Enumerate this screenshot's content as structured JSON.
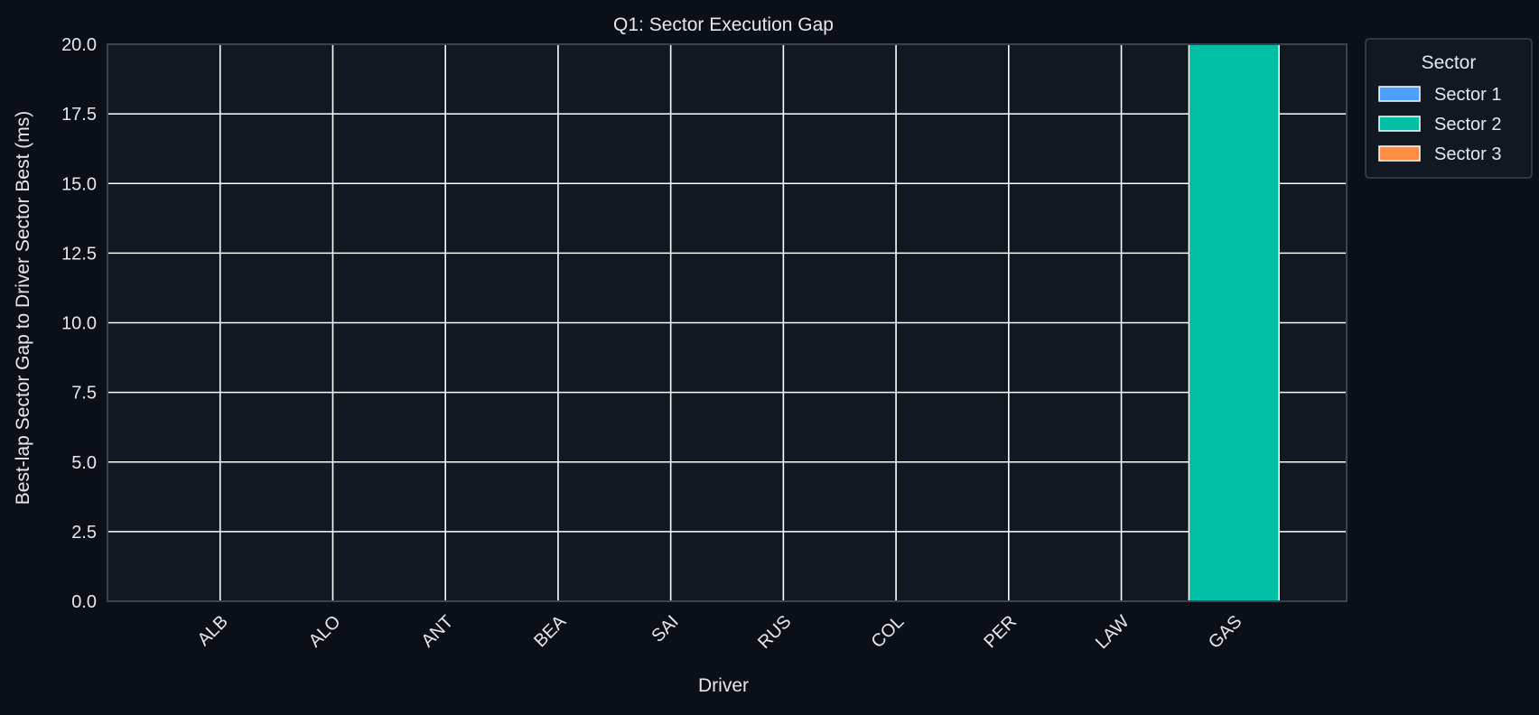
{
  "colors": {
    "page_background": "#0b0f17",
    "plot_background": "#111821",
    "grid": "#ffffff",
    "axes_frame": "#3a4350",
    "text": "#e6e8ec",
    "legend_background": "#111821",
    "legend_border": "#3a4350"
  },
  "chart_data": {
    "type": "bar",
    "title": "Q1: Sector Execution Gap",
    "xlabel": "Driver",
    "ylabel": "Best-lap Sector Gap to Driver Sector Best (ms)",
    "ylim": [
      0,
      20
    ],
    "yticks": [
      "0.0",
      "2.5",
      "5.0",
      "7.5",
      "10.0",
      "12.5",
      "15.0",
      "17.5",
      "20.0"
    ],
    "categories": [
      "ALB",
      "ALO",
      "ANT",
      "BEA",
      "SAI",
      "RUS",
      "COL",
      "PER",
      "LAW",
      "GAS"
    ],
    "grid": true,
    "legend": {
      "title": "Sector",
      "placement": "outside-right-top"
    },
    "series": [
      {
        "name": "Sector 1",
        "color": "#4c9ffe",
        "values": [
          0,
          0,
          0,
          0,
          0,
          0,
          0,
          0,
          0,
          0
        ]
      },
      {
        "name": "Sector 2",
        "color": "#00bfa5",
        "values": [
          0,
          0,
          0,
          0,
          0,
          0,
          0,
          0,
          0,
          20
        ]
      },
      {
        "name": "Sector 3",
        "color": "#ff8c42",
        "values": [
          0,
          0,
          0,
          0,
          0,
          0,
          0,
          0,
          0,
          0
        ]
      }
    ]
  }
}
